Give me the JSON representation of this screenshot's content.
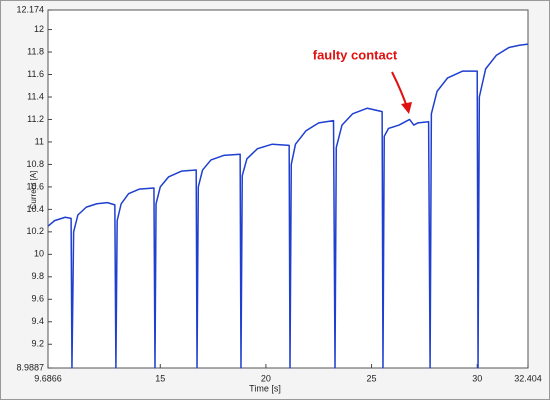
{
  "chart_data": {
    "type": "line",
    "xlabel": "Time [s]",
    "ylabel": "Current [A]",
    "annotation": "faulty contact",
    "xlim": [
      9.6866,
      32.404
    ],
    "ylim": [
      8.9887,
      12.174
    ],
    "xticks": [
      9.6866,
      15,
      20,
      25,
      30,
      32.404
    ],
    "yticks": [
      8.9887,
      9.2,
      9.4,
      9.6,
      9.8,
      10,
      10.2,
      10.4,
      10.6,
      10.8,
      11,
      11.2,
      11.4,
      11.6,
      11.8,
      12,
      12.174
    ],
    "series": [
      {
        "color": "#1f3fd0",
        "x": [
          9.6866,
          10.0,
          10.5,
          10.78,
          10.82,
          10.9,
          11.1,
          11.5,
          12.0,
          12.5,
          12.85,
          12.9,
          12.96,
          13.15,
          13.5,
          14.0,
          14.7,
          14.75,
          14.8,
          15.0,
          15.4,
          16.0,
          16.7,
          16.74,
          16.8,
          17.0,
          17.4,
          18.0,
          18.78,
          18.82,
          18.88,
          19.1,
          19.6,
          20.3,
          21.1,
          21.14,
          21.2,
          21.4,
          21.9,
          22.5,
          23.2,
          23.27,
          23.33,
          23.6,
          24.1,
          24.8,
          25.5,
          25.54,
          25.6,
          25.8,
          26.3,
          26.8,
          27.0,
          27.2,
          27.7,
          27.77,
          27.83,
          28.1,
          28.6,
          29.3,
          30.0,
          30.04,
          30.1,
          30.4,
          30.9,
          31.5,
          32.0,
          32.404
        ],
        "values": [
          10.25,
          10.3,
          10.33,
          10.32,
          8.99,
          10.2,
          10.35,
          10.42,
          10.45,
          10.46,
          10.44,
          8.99,
          10.3,
          10.45,
          10.54,
          10.58,
          10.59,
          8.99,
          10.45,
          10.6,
          10.69,
          10.74,
          10.75,
          8.99,
          10.6,
          10.75,
          10.84,
          10.88,
          10.89,
          8.99,
          10.7,
          10.85,
          10.94,
          10.98,
          10.97,
          8.99,
          10.8,
          10.98,
          11.1,
          11.17,
          11.19,
          8.99,
          10.95,
          11.15,
          11.25,
          11.3,
          11.27,
          8.99,
          11.05,
          11.12,
          11.15,
          11.2,
          11.15,
          11.17,
          11.18,
          8.99,
          11.25,
          11.45,
          11.57,
          11.63,
          11.63,
          8.99,
          11.4,
          11.65,
          11.77,
          11.84,
          11.86,
          11.87
        ]
      }
    ]
  }
}
